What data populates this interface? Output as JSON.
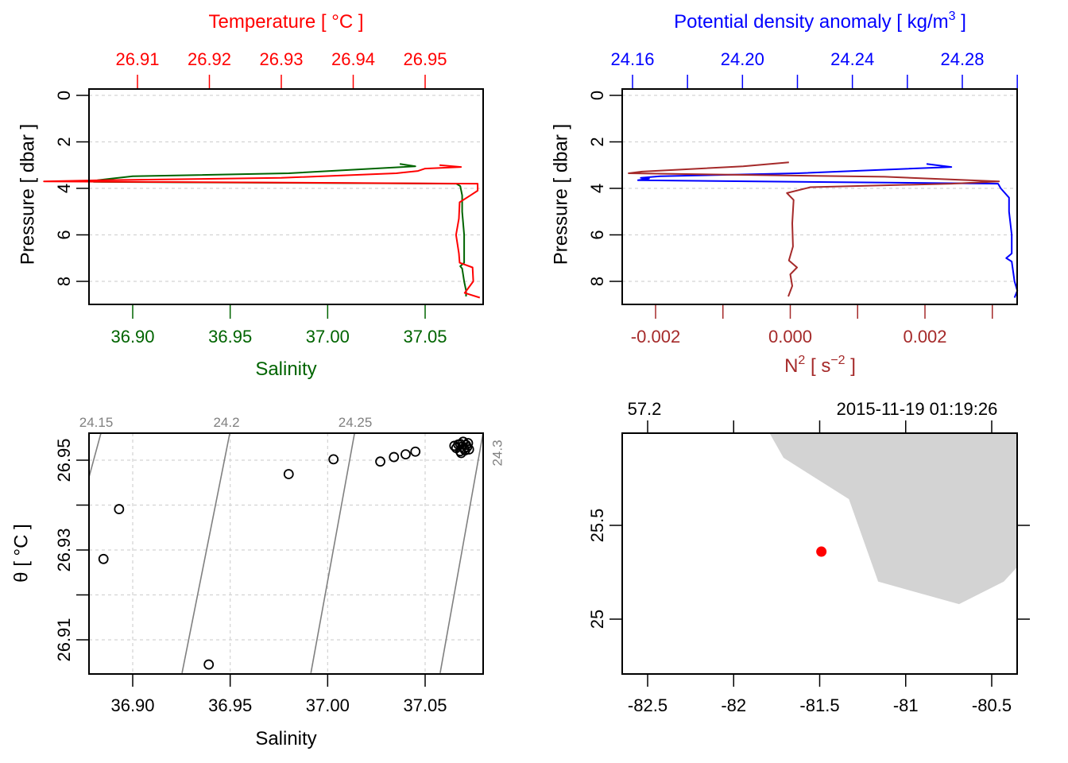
{
  "chart_data": [
    {
      "id": "profile-ts",
      "type": "line",
      "title": "",
      "top_axis": {
        "label": "Temperature [ °C ]",
        "color": "#ff0000",
        "ticks": [
          26.91,
          26.92,
          26.93,
          26.94,
          26.95
        ],
        "tick_labels": [
          "26.91",
          "26.92",
          "26.93",
          "26.94",
          "26.95"
        ]
      },
      "bottom_axis": {
        "label": "Salinity",
        "color": "#006400",
        "ticks": [
          36.9,
          36.95,
          37.0,
          37.05
        ],
        "tick_labels": [
          "36.90",
          "36.95",
          "37.00",
          "37.05"
        ],
        "range": [
          36.8777,
          37.0797
        ]
      },
      "ylabel": "Pressure [ dbar ]",
      "y_ticks": [
        0,
        2,
        4,
        6,
        8
      ],
      "y_tick_labels": [
        "0",
        "2",
        "4",
        "6",
        "8"
      ],
      "ylim": [
        9.0,
        -0.3
      ],
      "grid": true,
      "series": [
        {
          "name": "Salinity",
          "axis": "bottom",
          "color": "#006400",
          "points": [
            [
              37.037,
              2.95
            ],
            [
              37.045,
              3.05
            ],
            [
              36.98,
              3.35
            ],
            [
              36.9,
              3.48
            ],
            [
              36.889,
              3.58
            ],
            [
              36.882,
              3.65
            ],
            [
              36.88,
              3.72
            ],
            [
              37.066,
              3.8
            ],
            [
              37.068,
              3.9
            ],
            [
              37.069,
              4.3
            ],
            [
              37.069,
              5.0
            ],
            [
              37.07,
              6.0
            ],
            [
              37.07,
              7.2
            ],
            [
              37.068,
              7.35
            ],
            [
              37.069,
              7.45
            ],
            [
              37.07,
              8.0
            ],
            [
              37.071,
              8.4
            ],
            [
              37.071,
              8.65
            ]
          ]
        },
        {
          "name": "Temperature",
          "axis": "top",
          "color": "#ff0000",
          "points": [
            [
              26.952,
              3.0
            ],
            [
              26.955,
              3.08
            ],
            [
              26.95,
              3.15
            ],
            [
              26.949,
              3.25
            ],
            [
              26.946,
              3.35
            ],
            [
              26.93,
              3.55
            ],
            [
              26.905,
              3.65
            ],
            [
              26.897,
              3.7
            ],
            [
              26.9573,
              3.8
            ],
            [
              26.9573,
              4.1
            ],
            [
              26.9563,
              4.3
            ],
            [
              26.9548,
              4.6
            ],
            [
              26.9547,
              5.3
            ],
            [
              26.9543,
              6.0
            ],
            [
              26.9547,
              6.8
            ],
            [
              26.9548,
              7.2
            ],
            [
              26.9566,
              7.4
            ],
            [
              26.9567,
              8.0
            ],
            [
              26.9555,
              8.5
            ],
            [
              26.9576,
              8.7
            ]
          ]
        }
      ]
    },
    {
      "id": "profile-density-n2",
      "type": "line",
      "title": "",
      "top_axis": {
        "label": "Potential density anomaly [ kg/m",
        "label_sup": "3",
        "label_end": " ]",
        "color": "#0000ff",
        "ticks": [
          24.16,
          24.18,
          24.2,
          24.22,
          24.24,
          24.26,
          24.28,
          24.3
        ],
        "tick_labels": [
          "24.16",
          "",
          "24.20",
          "",
          "24.24",
          "",
          "24.28",
          ""
        ]
      },
      "bottom_axis": {
        "label": "N",
        "label_sup": "2",
        "label_mid": " [ s",
        "label_sup2": "−2",
        "label_end": " ]",
        "color": "#a52a2a",
        "ticks": [
          -0.002,
          -0.001,
          0.0,
          0.001,
          0.002,
          0.003
        ],
        "tick_labels": [
          "-0.002",
          "",
          "0.000",
          "",
          "0.002",
          ""
        ]
      },
      "ylabel": "Pressure [ dbar ]",
      "y_ticks": [
        0,
        2,
        4,
        6,
        8
      ],
      "y_tick_labels": [
        "0",
        "2",
        "4",
        "6",
        "8"
      ],
      "ylim": [
        9.0,
        -0.3
      ],
      "grid": true,
      "series": [
        {
          "name": "Potential density anomaly",
          "axis": "top",
          "color": "#0000ff",
          "points": [
            [
              24.267,
              2.95
            ],
            [
              24.276,
              3.08
            ],
            [
              24.22,
              3.35
            ],
            [
              24.17,
              3.48
            ],
            [
              24.163,
              3.55
            ],
            [
              24.166,
              3.58
            ],
            [
              24.162,
              3.65
            ],
            [
              24.293,
              3.8
            ],
            [
              24.294,
              4.0
            ],
            [
              24.297,
              4.4
            ],
            [
              24.297,
              5.0
            ],
            [
              24.298,
              6.0
            ],
            [
              24.298,
              6.8
            ],
            [
              24.296,
              7.0
            ],
            [
              24.298,
              7.15
            ],
            [
              24.299,
              8.0
            ],
            [
              24.3,
              8.4
            ],
            [
              24.299,
              8.7
            ]
          ]
        },
        {
          "name": "N2",
          "axis": "bottom",
          "color": "#a52a2a",
          "points": [
            [
              -2e-05,
              2.88
            ],
            [
              -0.0007,
              3.05
            ],
            [
              -0.0022,
              3.28
            ],
            [
              -0.0024,
              3.35
            ],
            [
              0.0014,
              3.5
            ],
            [
              0.0031,
              3.7
            ],
            [
              0.0024,
              3.8
            ],
            [
              0.0003,
              3.95
            ],
            [
              -5e-05,
              4.2
            ],
            [
              5e-05,
              4.5
            ],
            [
              3e-05,
              5.5
            ],
            [
              4e-05,
              6.5
            ],
            [
              -2e-05,
              7.1
            ],
            [
              0.0001,
              7.4
            ],
            [
              0.0,
              7.7
            ],
            [
              3e-05,
              8.2
            ],
            [
              -3e-05,
              8.65
            ]
          ]
        }
      ]
    },
    {
      "id": "ts-diagram",
      "type": "scatter",
      "title": "",
      "xlabel": "Salinity",
      "ylabel": "θ [ °C ]",
      "x_ticks": [
        36.9,
        36.95,
        37.0,
        37.05
      ],
      "x_tick_labels": [
        "36.90",
        "36.95",
        "37.00",
        "37.05"
      ],
      "xlim": [
        36.8777,
        37.0797
      ],
      "y_ticks": [
        26.91,
        26.92,
        26.93,
        26.94,
        26.95
      ],
      "y_tick_labels": [
        "26.91",
        "",
        "26.93",
        "",
        "26.95"
      ],
      "ylim": [
        26.9026,
        26.9563
      ],
      "grid": true,
      "isopycnals": {
        "color": "#808080",
        "labels": [
          "24.15",
          "24.2",
          "24.25",
          "24.3"
        ],
        "lines": [
          {
            "label": "24.15",
            "top_s": 36.8837,
            "bottom_s": 36.8777,
            "bottom_t": 26.9464
          },
          {
            "label": "24.2",
            "top_s": 36.9498,
            "bottom_s": 36.9253,
            "bottom_t": 26.9026
          },
          {
            "label": "24.25",
            "top_s": 37.0138,
            "bottom_s": 36.9914,
            "bottom_t": 26.9026
          },
          {
            "label": "24.3",
            "top_s": 37.0797,
            "bottom_s": 37.0577,
            "bottom_t": 26.9026
          }
        ]
      },
      "points": [
        [
          36.939,
          26.9045
        ],
        [
          36.885,
          26.928
        ],
        [
          36.893,
          26.9391
        ],
        [
          36.98,
          26.9469
        ],
        [
          37.003,
          26.9502
        ],
        [
          37.027,
          26.9497
        ],
        [
          37.034,
          26.9507
        ],
        [
          37.04,
          26.9513
        ],
        [
          37.045,
          26.9519
        ],
        [
          37.065,
          26.9532
        ],
        [
          37.067,
          26.9535
        ],
        [
          37.068,
          26.9536
        ],
        [
          37.069,
          26.953
        ],
        [
          37.07,
          26.9526
        ],
        [
          37.071,
          26.9534
        ],
        [
          37.072,
          26.9538
        ],
        [
          37.0705,
          26.9522
        ],
        [
          37.068,
          26.952
        ],
        [
          37.0715,
          26.9529
        ],
        [
          37.0695,
          26.9541
        ],
        [
          37.066,
          26.9527
        ],
        [
          37.0725,
          26.9524
        ],
        [
          37.0685,
          26.9516
        ]
      ],
      "marker_color": "#000000"
    },
    {
      "id": "location-map",
      "type": "scatter",
      "title": "",
      "xlabel": "",
      "ylabel": "",
      "x_ticks": [
        -82.5,
        -82,
        -81.5,
        -81,
        -80.5
      ],
      "x_tick_labels": [
        "-82.5",
        "-82",
        "-81.5",
        "-81",
        "-80.5"
      ],
      "xlim": [
        -82.65,
        -80.35
      ],
      "y_ticks": [
        25,
        25.5
      ],
      "y_tick_labels": [
        "25",
        "25.5"
      ],
      "ylim": [
        24.71,
        25.99
      ],
      "top_ticks": [
        -82.5,
        -82,
        -81.5,
        -81,
        -80.5
      ],
      "top_tick_labels": [
        "57.2",
        "",
        "2015-11-19 01:19:26",
        "",
        ""
      ],
      "right_ticks": [
        25,
        25.5
      ],
      "land_color": "#d3d3d3",
      "land_polygon": [
        [
          -81.79,
          25.99
        ],
        [
          -81.71,
          25.86
        ],
        [
          -81.33,
          25.64
        ],
        [
          -81.16,
          25.2
        ],
        [
          -80.69,
          25.08
        ],
        [
          -80.43,
          25.2
        ],
        [
          -80.35,
          25.28
        ],
        [
          -80.35,
          25.99
        ]
      ],
      "station": {
        "lon": -81.49,
        "lat": 25.36,
        "color": "#ff0000"
      }
    }
  ]
}
